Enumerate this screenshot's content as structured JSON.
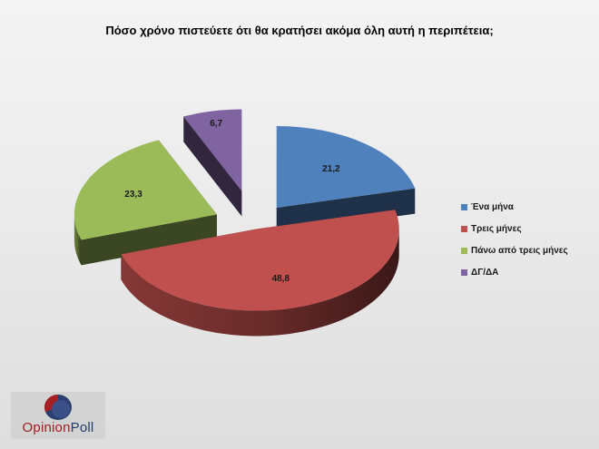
{
  "chart_data": {
    "type": "pie",
    "title": "Πόσο χρόνο πιστεύετε ότι θα κρατήσει ακόμα όλη αυτή η περιπέτεια;",
    "categories": [
      "Ένα μήνα",
      "Τρεις μήνες",
      "Πάνω από τρεις μήνες",
      "ΔΓ/ΔΑ"
    ],
    "values": [
      21.2,
      48.8,
      23.3,
      6.7
    ],
    "value_labels": [
      "21,2",
      "48,8",
      "23,3",
      "6,7"
    ],
    "colors": [
      "#4f81bd",
      "#c0504d",
      "#9bbb59",
      "#8064a2"
    ],
    "style": "3d-exploded",
    "legend": "right"
  },
  "logo": {
    "word1": "Opinion",
    "word2": "Poll"
  }
}
